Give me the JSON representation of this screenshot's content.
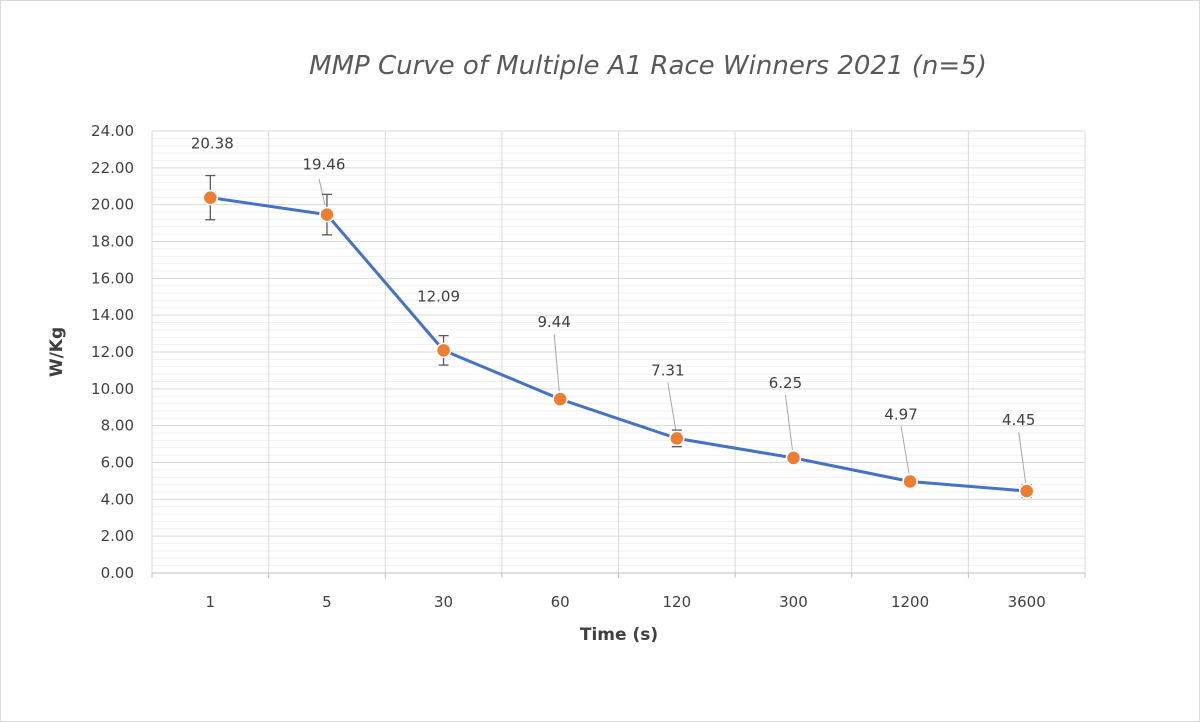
{
  "chart_data": {
    "type": "line",
    "title": "MMP Curve of Multiple A1 Race Winners 2021 (n=5)",
    "xlabel": "Time (s)",
    "ylabel": "W/Kg",
    "categories": [
      "1",
      "5",
      "30",
      "60",
      "120",
      "300",
      "1200",
      "3600"
    ],
    "series": [
      {
        "name": "W/Kg",
        "values": [
          20.38,
          19.46,
          12.09,
          9.44,
          7.31,
          6.25,
          4.97,
          4.45
        ],
        "labels": [
          "20.38",
          "19.46",
          "12.09",
          "9.44",
          "7.31",
          "6.25",
          "4.97",
          "4.45"
        ],
        "error": [
          1.2,
          1.1,
          0.8,
          0.25,
          0.45,
          0.1,
          0.15,
          0.35
        ],
        "line_color": "#4472c4",
        "marker_color": "#ed7d31"
      }
    ],
    "ylim": [
      0,
      24
    ],
    "ystep": 2,
    "yticks": [
      "0.00",
      "2.00",
      "4.00",
      "6.00",
      "8.00",
      "10.00",
      "12.00",
      "14.00",
      "16.00",
      "18.00",
      "20.00",
      "22.00",
      "24.00"
    ],
    "grid": true,
    "legend": "none"
  }
}
